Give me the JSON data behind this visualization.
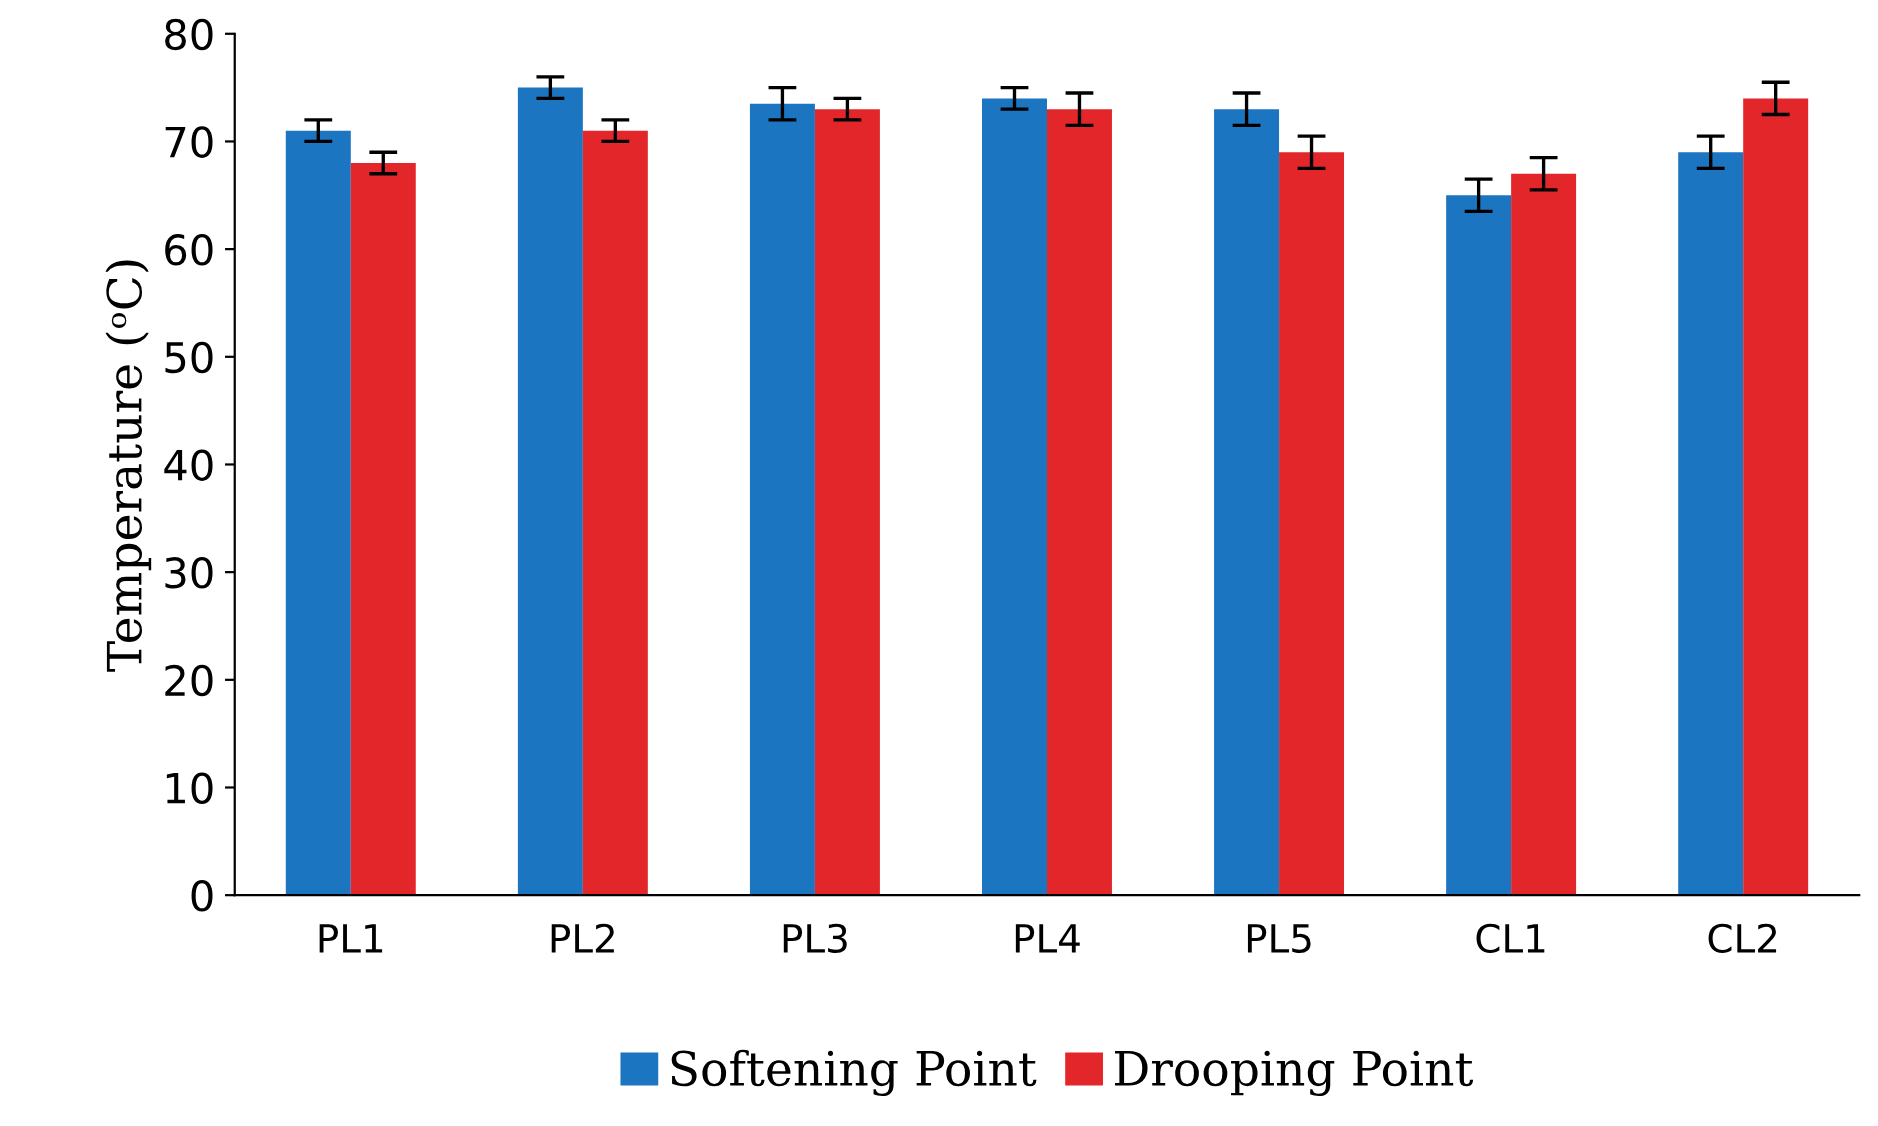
{
  "chart_data": {
    "type": "bar",
    "ylabel": "Temperature (ᵒC)",
    "categories": [
      "PL1",
      "PL2",
      "PL3",
      "PL4",
      "PL5",
      "CL1",
      "CL2"
    ],
    "series": [
      {
        "name": "Softening Point",
        "color": "#1b75c0",
        "values": [
          71,
          75,
          73.5,
          74,
          73,
          65,
          69
        ],
        "errors": [
          1,
          1,
          1.5,
          1,
          1.5,
          1.5,
          1.5
        ]
      },
      {
        "name": "Drooping Point",
        "color": "#e2262a",
        "values": [
          68,
          71,
          73,
          73,
          69,
          67,
          74
        ],
        "errors": [
          1,
          1,
          1,
          1.5,
          1.5,
          1.5,
          1.5
        ]
      }
    ],
    "ylim": [
      0,
      80
    ],
    "yticks": [
      0,
      10,
      20,
      30,
      40,
      50,
      60,
      70,
      80
    ],
    "grid": false,
    "legend": "bottom"
  }
}
